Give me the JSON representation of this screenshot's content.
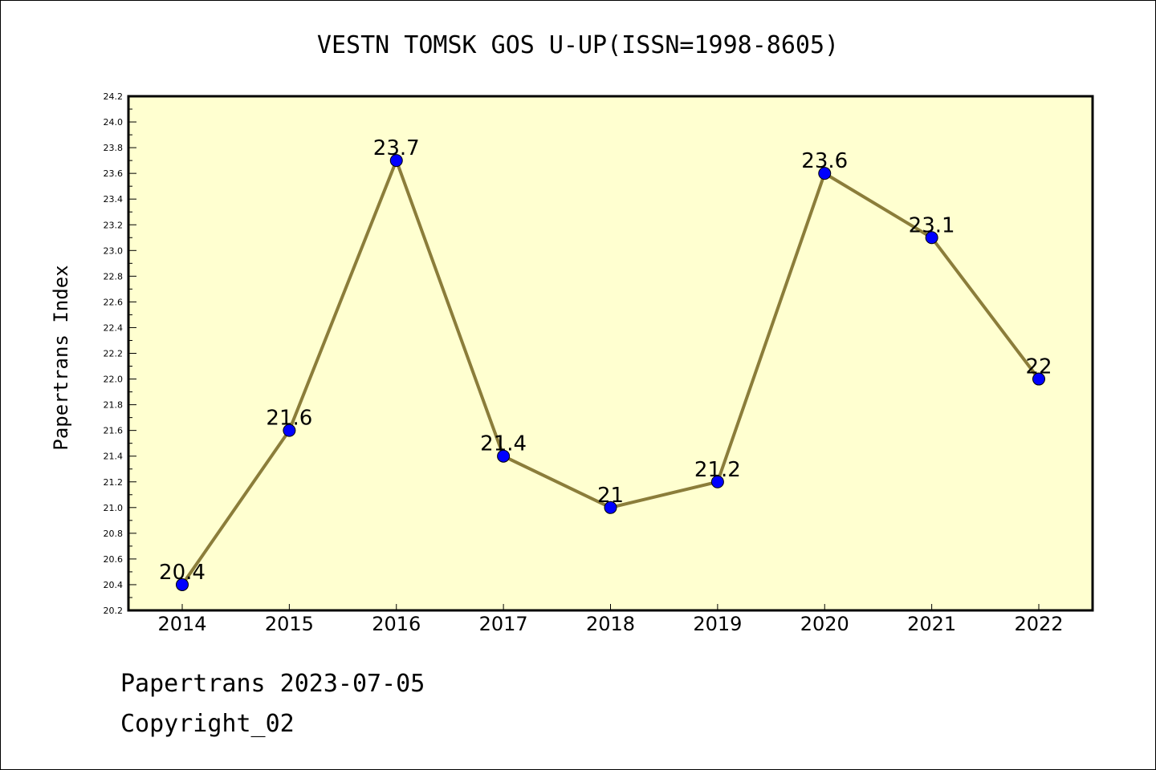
{
  "chart_data": {
    "type": "line",
    "title": "VESTN TOMSK GOS U-UP(ISSN=1998-8605)",
    "xlabel": "",
    "ylabel": "Papertrans Index",
    "categories": [
      "2014",
      "2015",
      "2016",
      "2017",
      "2018",
      "2019",
      "2020",
      "2021",
      "2022"
    ],
    "series": [
      {
        "values": [
          20.4,
          21.6,
          23.7,
          21.4,
          21.0,
          21.2,
          23.6,
          23.1,
          22.0
        ],
        "data_labels": [
          "20.4",
          "21.6",
          "23.7",
          "21.4",
          "21",
          "21.2",
          "23.6",
          "23.1",
          "22"
        ]
      }
    ],
    "ylim": [
      20.2,
      24.2
    ],
    "yticks": [
      "20.2",
      "20.4",
      "20.6",
      "20.8",
      "21.0",
      "21.2",
      "21.4",
      "21.6",
      "21.8",
      "22.0",
      "22.2",
      "22.4",
      "22.6",
      "22.8",
      "23.0",
      "23.2",
      "23.4",
      "23.6",
      "23.8",
      "24.0",
      "24.2"
    ],
    "grid": false,
    "colors": {
      "plot_background": "#ffffd0",
      "line": "#8b7d3a",
      "marker": "#0000ff"
    }
  },
  "footer": {
    "line1": "Papertrans 2023-07-05",
    "line2": "Copyright_02"
  }
}
